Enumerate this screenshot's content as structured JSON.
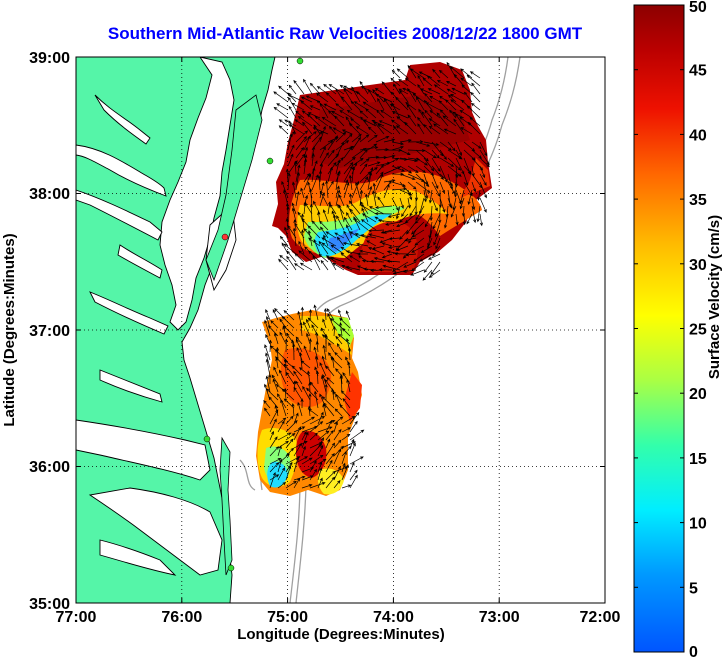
{
  "title": "Southern Mid-Atlantic Raw Velocities 2008/12/22 1800 GMT",
  "x_axis_label": "Longitude (Degrees:Minutes)",
  "y_axis_label": "Latitude (Degrees:Minutes)",
  "colorbar_label": "Surface Velocity (cm/s)",
  "x_ticks": [
    "77:00",
    "76:00",
    "75:00",
    "74:00",
    "73:00",
    "72:00"
  ],
  "y_ticks": [
    "39:00",
    "38:00",
    "37:00",
    "36:00",
    "35:00"
  ],
  "colorbar_ticks": [
    "50",
    "45",
    "40",
    "35",
    "30",
    "25",
    "20",
    "15",
    "10",
    "5",
    "0"
  ],
  "colors": {
    "title": "#0000ff",
    "land": "#55f5a8",
    "ocean": "#ffffff",
    "bathymetry": "#a0a0a0",
    "arrows": "#000000",
    "site_marker": "#33dd33",
    "site_marker_alt": "#ff3333"
  },
  "map": {
    "lon_range": [
      -77,
      -72
    ],
    "lat_range": [
      35,
      39
    ],
    "grid": "dotted",
    "colorscale": "jet",
    "velocity_range_cm_s": [
      0,
      50
    ]
  },
  "chart_data": {
    "type": "heatmap",
    "title": "Southern Mid-Atlantic Raw Velocities 2008/12/22 1800 GMT",
    "xlabel": "Longitude (Degrees:Minutes)",
    "ylabel": "Latitude (Degrees:Minutes)",
    "colorbar_label": "Surface Velocity (cm/s)",
    "xlim": [
      -77,
      -72
    ],
    "ylim": [
      35,
      39
    ],
    "clim": [
      0,
      50
    ],
    "regions": [
      {
        "name": "",
        "lon_range": [
          -75.1,
          -73.0
        ],
        "lat_range": [
          37.5,
          38.95
        ],
        "dominant_speed_cm_s": 48,
        "min_speed_cm_s": 10
      },
      {
        "name": "",
        "lon_range": [
          -75.3,
          -74.0
        ],
        "lat_range": [
          35.8,
          37.1
        ],
        "dominant_speed_cm_s": 30,
        "min_speed_cm_s": 12
      }
    ]
  }
}
